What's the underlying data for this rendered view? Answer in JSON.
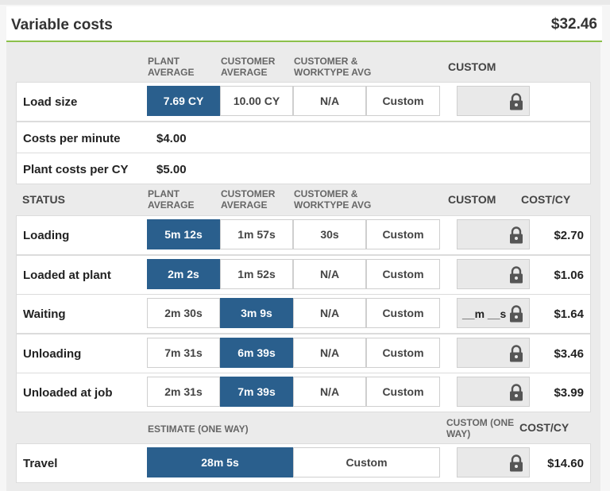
{
  "header": {
    "title": "Variable costs",
    "total": "$32.46"
  },
  "top_headers": {
    "plant_avg": [
      "PLANT",
      "AVERAGE"
    ],
    "customer_avg": [
      "CUSTOMER",
      "AVERAGE"
    ],
    "customer_worktype": [
      "CUSTOMER &",
      "WORKTYPE AVG"
    ],
    "custom": "CUSTOM"
  },
  "load_size": {
    "label": "Load size",
    "options": [
      "7.69 CY",
      "10.00 CY",
      "N/A",
      "Custom"
    ],
    "selected": 0
  },
  "costs_per_minute": {
    "label": "Costs per minute",
    "value": "$4.00"
  },
  "plant_costs_per_cy": {
    "label": "Plant costs per CY",
    "value": "$5.00"
  },
  "status_headers": {
    "status": "STATUS",
    "plant_avg": [
      "PLANT",
      "AVERAGE"
    ],
    "customer_avg": [
      "CUSTOMER",
      "AVERAGE"
    ],
    "customer_worktype": [
      "CUSTOMER &",
      "WORKTYPE AVG"
    ],
    "custom": "CUSTOM",
    "cost": "COST/CY"
  },
  "status_rows": [
    {
      "label": "Loading",
      "options": [
        "5m 12s",
        "1m 57s",
        "30s",
        "Custom"
      ],
      "selected": 0,
      "custom_text": "",
      "cost": "$2.70"
    },
    {
      "label": "Loaded at plant",
      "options": [
        "2m 2s",
        "1m 52s",
        "N/A",
        "Custom"
      ],
      "selected": 0,
      "custom_text": "",
      "cost": "$1.06"
    },
    {
      "label": "Waiting",
      "options": [
        "2m 30s",
        "3m 9s",
        "N/A",
        "Custom"
      ],
      "selected": 1,
      "custom_text": "__m __s",
      "cost": "$1.64"
    },
    {
      "label": "Unloading",
      "options": [
        "7m 31s",
        "6m 39s",
        "N/A",
        "Custom"
      ],
      "selected": 1,
      "custom_text": "",
      "cost": "$3.46"
    },
    {
      "label": "Unloaded at job",
      "options": [
        "2m 31s",
        "7m 39s",
        "N/A",
        "Custom"
      ],
      "selected": 1,
      "custom_text": "",
      "cost": "$3.99"
    }
  ],
  "travel_headers": {
    "estimate": "ESTIMATE (ONE WAY)",
    "custom": [
      "CUSTOM (ONE",
      "WAY)"
    ],
    "cost": "COST/CY"
  },
  "travel": {
    "label": "Travel",
    "options": [
      "28m 5s",
      "Custom"
    ],
    "selected": 0,
    "cost": "$14.60"
  },
  "colors": {
    "selected": "#2a5f8d",
    "accent_line": "#8cc04b"
  }
}
